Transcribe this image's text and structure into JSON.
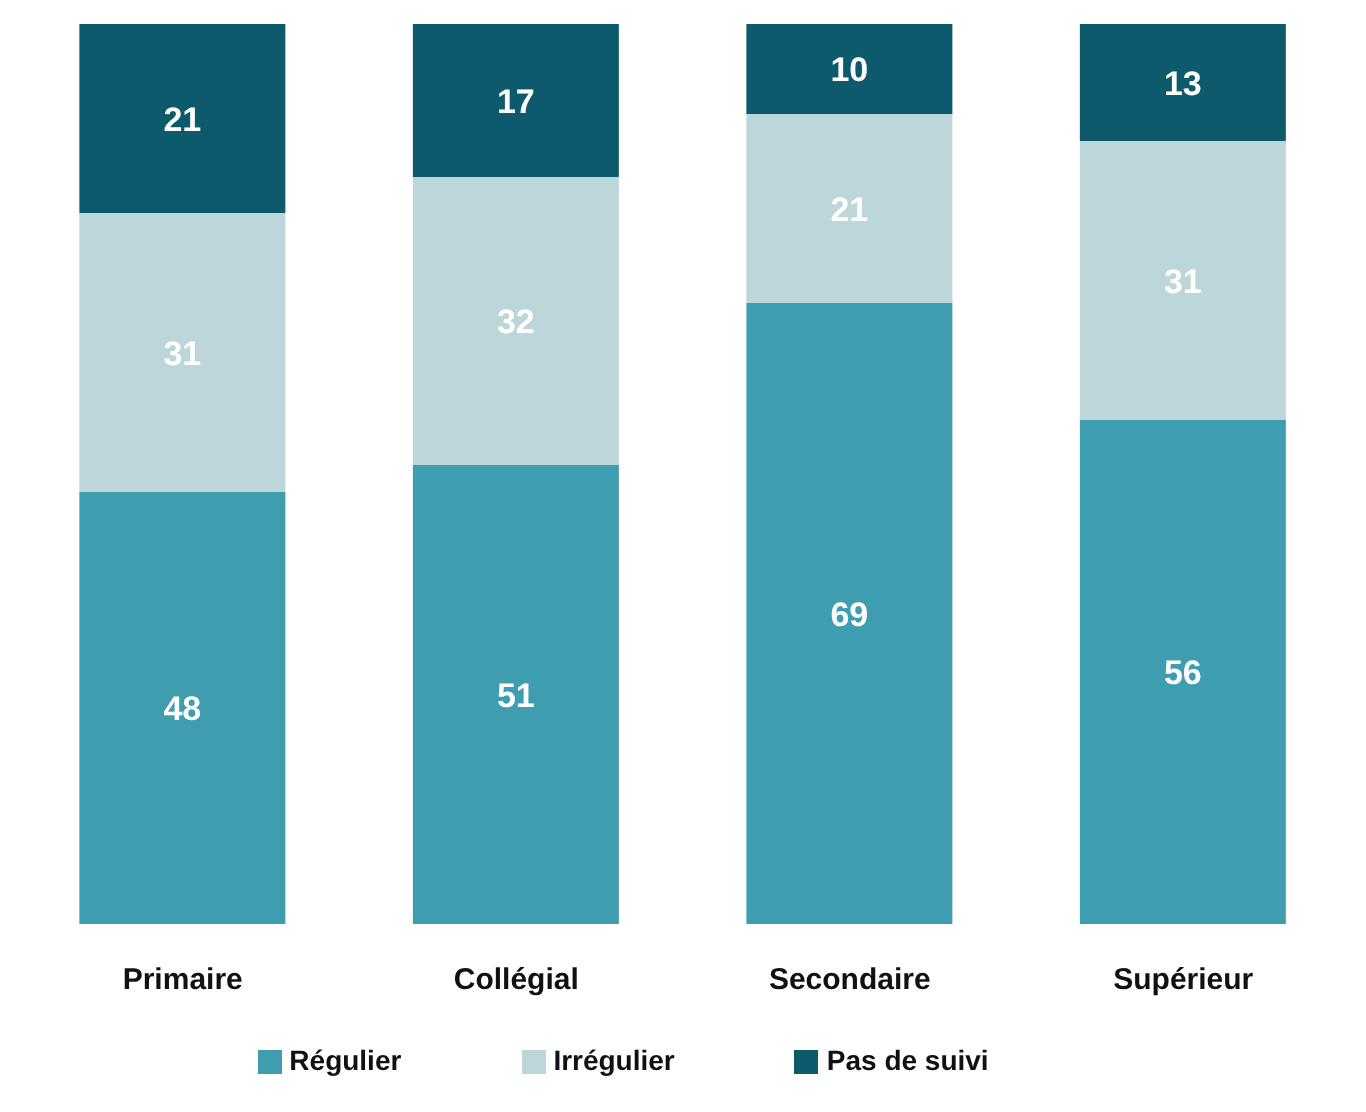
{
  "chart_data": {
    "type": "bar",
    "stacked": true,
    "categories": [
      "Primaire",
      "Collégial",
      "Secondaire",
      "Supérieur"
    ],
    "series": [
      {
        "name": "Régulier",
        "color": "#3f9db0",
        "values": [
          48,
          51,
          69,
          56
        ]
      },
      {
        "name": "Irrégulier",
        "color": "#bcd6d9",
        "values": [
          31,
          32,
          21,
          31
        ]
      },
      {
        "name": "Pas de suivi",
        "color": "#0d5a6c",
        "values": [
          21,
          17,
          10,
          13
        ]
      }
    ],
    "data_labels": true,
    "legend": "bottom",
    "grid": false
  }
}
